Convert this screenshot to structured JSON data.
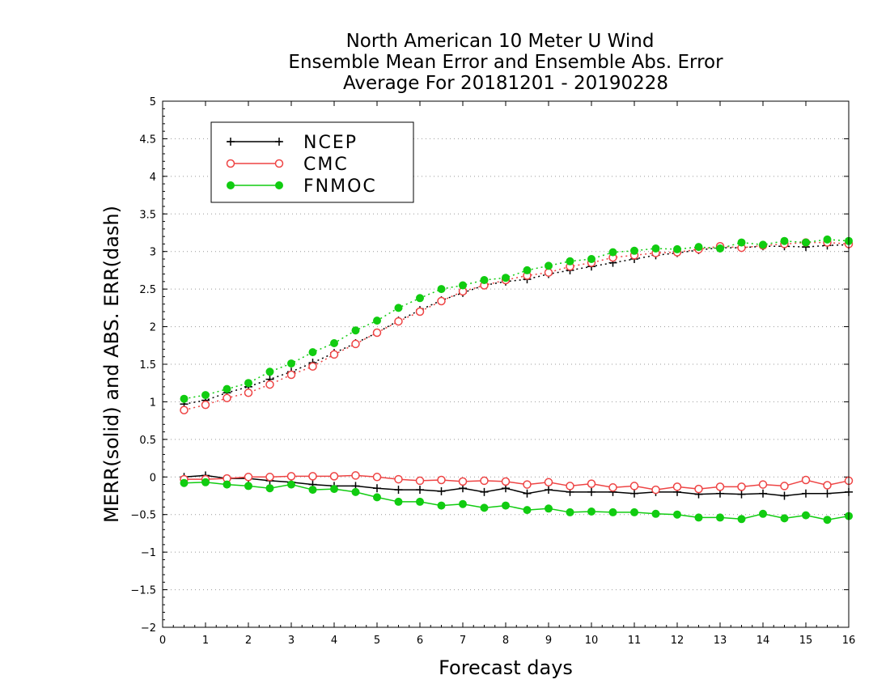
{
  "chart_data": {
    "type": "line",
    "title_lines": [
      "North American 10 Meter U Wind",
      "Ensemble Mean Error and Ensemble Abs. Error",
      "Average For 20181201 - 20190228"
    ],
    "xlabel": "Forecast days",
    "ylabel": "MERR(solid) and ABS. ERR(dash)",
    "xlim": [
      0,
      16
    ],
    "ylim": [
      -2,
      5
    ],
    "x_ticks": [
      "0",
      "1",
      "2",
      "3",
      "4",
      "5",
      "6",
      "7",
      "8",
      "9",
      "10",
      "11",
      "12",
      "13",
      "14",
      "15",
      "16"
    ],
    "y_ticks": [
      "5",
      "4.5",
      "4",
      "3.5",
      "3",
      "2.5",
      "2",
      "1.5",
      "1",
      "0.5",
      "0",
      "−0.5",
      "−1",
      "−1.5",
      "−2"
    ],
    "grid": true,
    "legend_position": "top-left",
    "x": [
      0.5,
      1,
      1.5,
      2,
      2.5,
      3,
      3.5,
      4,
      4.5,
      5,
      5.5,
      6,
      6.5,
      7,
      7.5,
      8,
      8.5,
      9,
      9.5,
      10,
      10.5,
      11,
      11.5,
      12,
      12.5,
      13,
      13.5,
      14,
      14.5,
      15,
      15.5,
      16
    ],
    "series": [
      {
        "name": "NCEP",
        "color": "#000000",
        "marker": "plus",
        "merr": [
          0.0,
          0.02,
          -0.02,
          -0.02,
          -0.05,
          -0.07,
          -0.1,
          -0.12,
          -0.12,
          -0.15,
          -0.17,
          -0.17,
          -0.19,
          -0.15,
          -0.2,
          -0.15,
          -0.22,
          -0.17,
          -0.2,
          -0.2,
          -0.2,
          -0.22,
          -0.2,
          -0.2,
          -0.23,
          -0.22,
          -0.23,
          -0.22,
          -0.25,
          -0.22,
          -0.22,
          -0.2
        ],
        "abs_err": [
          0.97,
          1.02,
          1.12,
          1.2,
          1.3,
          1.4,
          1.52,
          1.65,
          1.78,
          1.92,
          2.08,
          2.22,
          2.35,
          2.45,
          2.55,
          2.6,
          2.63,
          2.7,
          2.75,
          2.8,
          2.85,
          2.9,
          2.95,
          2.98,
          3.02,
          3.05,
          3.05,
          3.07,
          3.07,
          3.06,
          3.08,
          3.09
        ]
      },
      {
        "name": "CMC",
        "color": "#ee4444",
        "marker": "open-circle",
        "merr": [
          -0.03,
          -0.03,
          -0.02,
          0.0,
          0.0,
          0.01,
          0.01,
          0.01,
          0.02,
          0.0,
          -0.03,
          -0.05,
          -0.04,
          -0.06,
          -0.05,
          -0.06,
          -0.1,
          -0.07,
          -0.12,
          -0.09,
          -0.14,
          -0.12,
          -0.17,
          -0.13,
          -0.16,
          -0.13,
          -0.13,
          -0.1,
          -0.12,
          -0.04,
          -0.11,
          -0.05
        ],
        "abs_err": [
          0.89,
          0.96,
          1.05,
          1.12,
          1.23,
          1.36,
          1.47,
          1.63,
          1.77,
          1.92,
          2.07,
          2.2,
          2.34,
          2.47,
          2.55,
          2.62,
          2.68,
          2.72,
          2.8,
          2.85,
          2.92,
          2.95,
          2.98,
          2.99,
          3.03,
          3.07,
          3.05,
          3.08,
          3.1,
          3.12,
          3.12,
          3.1
        ]
      },
      {
        "name": "FNMOC",
        "color": "#11cc11",
        "marker": "filled-circle",
        "merr": [
          -0.08,
          -0.07,
          -0.1,
          -0.12,
          -0.15,
          -0.1,
          -0.17,
          -0.16,
          -0.2,
          -0.27,
          -0.33,
          -0.33,
          -0.38,
          -0.36,
          -0.41,
          -0.38,
          -0.44,
          -0.42,
          -0.47,
          -0.46,
          -0.47,
          -0.47,
          -0.49,
          -0.5,
          -0.54,
          -0.54,
          -0.56,
          -0.49,
          -0.55,
          -0.51,
          -0.57,
          -0.52
        ],
        "abs_err": [
          1.04,
          1.09,
          1.17,
          1.25,
          1.4,
          1.51,
          1.66,
          1.78,
          1.95,
          2.08,
          2.25,
          2.38,
          2.5,
          2.55,
          2.62,
          2.65,
          2.75,
          2.81,
          2.87,
          2.9,
          2.99,
          3.01,
          3.04,
          3.03,
          3.06,
          3.04,
          3.12,
          3.09,
          3.14,
          3.12,
          3.16,
          3.14
        ]
      }
    ]
  }
}
